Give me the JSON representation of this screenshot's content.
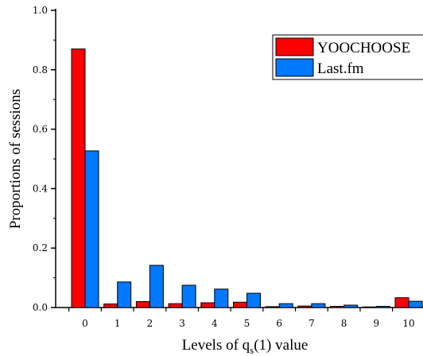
{
  "chart_data": {
    "type": "bar",
    "categories": [
      "0",
      "1",
      "2",
      "3",
      "4",
      "5",
      "6",
      "7",
      "8",
      "9",
      "10"
    ],
    "series": [
      {
        "name": "YOOCHOOSE",
        "color": "#ff0000",
        "values": [
          0.87,
          0.012,
          0.02,
          0.013,
          0.016,
          0.018,
          0.003,
          0.005,
          0.004,
          0.002,
          0.033
        ]
      },
      {
        "name": "Last.fm",
        "color": "#0078ff",
        "values": [
          0.527,
          0.086,
          0.142,
          0.075,
          0.062,
          0.048,
          0.013,
          0.013,
          0.008,
          0.004,
          0.021
        ]
      }
    ],
    "yticks": [
      "0.0",
      "0.2",
      "0.4",
      "0.6",
      "0.8",
      "1.0"
    ],
    "ylim": [
      0,
      1.0
    ],
    "xlabel_prefix": "Levels of q",
    "xlabel_sub": "s",
    "xlabel_suffix": "(1) value",
    "ylabel": "Proportions of sessions",
    "legend_position": "top-right",
    "grid": false
  }
}
